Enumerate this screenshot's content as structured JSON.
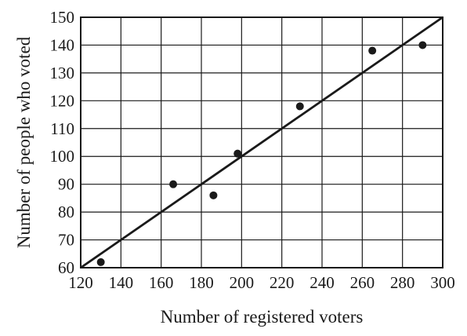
{
  "chart_data": {
    "type": "scatter",
    "title": "",
    "xlabel": "Number of registered voters",
    "ylabel": "Number of people who voted",
    "xlim": [
      120,
      300
    ],
    "ylim": [
      60,
      150
    ],
    "x_ticks": [
      120,
      140,
      160,
      180,
      200,
      220,
      240,
      260,
      280,
      300
    ],
    "y_ticks": [
      60,
      70,
      80,
      90,
      100,
      110,
      120,
      130,
      140,
      150
    ],
    "grid": true,
    "legend": "none",
    "points": [
      {
        "x": 130,
        "y": 62
      },
      {
        "x": 166,
        "y": 90
      },
      {
        "x": 186,
        "y": 86
      },
      {
        "x": 198,
        "y": 101
      },
      {
        "x": 229,
        "y": 118
      },
      {
        "x": 265,
        "y": 138
      },
      {
        "x": 290,
        "y": 140
      }
    ],
    "line_of_best_fit": {
      "x1": 120,
      "y1": 60,
      "x2": 300,
      "y2": 150
    },
    "colors": {
      "ink": "#1a1a1a",
      "background": "#ffffff"
    }
  }
}
